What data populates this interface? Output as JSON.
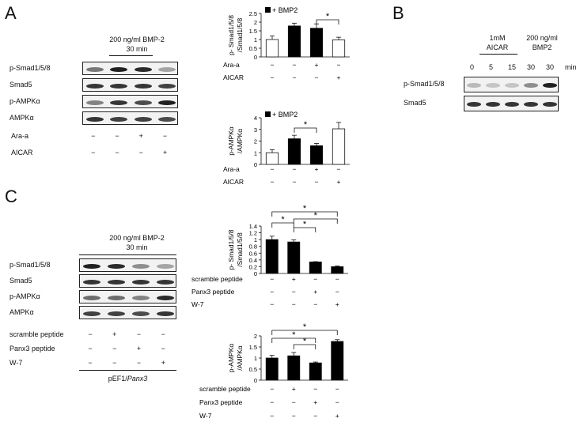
{
  "panelA": {
    "letter": "A",
    "blot": {
      "treatment_line1": "200 ng/ml BMP-2",
      "treatment_line2": "30 min",
      "rows": [
        "p-Smad1/5/8",
        "Smad5",
        "p-AMPKα",
        "AMPKα"
      ],
      "conditions": [
        {
          "label": "Ara-a",
          "marks": [
            "−",
            "−",
            "+",
            "−"
          ]
        },
        {
          "label": "AICAR",
          "marks": [
            "−",
            "−",
            "−",
            "+"
          ]
        }
      ]
    }
  },
  "panelB": {
    "letter": "B",
    "header_aicar_line1": "1mM",
    "header_aicar_line2": "AICAR",
    "header_bmp_line1": "200 ng/ml",
    "header_bmp_line2": "BMP2",
    "times": [
      "0",
      "5",
      "15",
      "30",
      "30"
    ],
    "time_unit": "min",
    "rows": [
      "p-Smad1/5/8",
      "Smad5"
    ]
  },
  "panelC": {
    "letter": "C",
    "blot": {
      "treatment_line1": "200 ng/ml BMP-2",
      "treatment_line2": "30 min",
      "rows": [
        "p-Smad1/5/8",
        "Smad5",
        "p-AMPKα",
        "AMPKα"
      ],
      "conditions": [
        {
          "label": "scramble peptide",
          "marks": [
            "−",
            "+",
            "−",
            "−"
          ]
        },
        {
          "label": "Panx3 peptide",
          "marks": [
            "−",
            "−",
            "+",
            "−"
          ]
        },
        {
          "label": "W-7",
          "marks": [
            "−",
            "−",
            "−",
            "+"
          ]
        }
      ],
      "footer_prefix": "pEF1/",
      "footer_gene": "Panx3"
    }
  },
  "chart_data": [
    {
      "id": "A-top",
      "type": "bar",
      "legend": "+ BMP2",
      "ylabel_line1": "p- Smad1/5/8",
      "ylabel_line2": "/Smad1/5/8",
      "ylim": [
        0,
        2.5
      ],
      "yticks": [
        "0",
        "0.5",
        "1",
        "1.5",
        "2",
        "2.5"
      ],
      "values": [
        1.0,
        1.78,
        1.65,
        0.98
      ],
      "errors": [
        0.2,
        0.16,
        0.25,
        0.15
      ],
      "fills": [
        "#ffffff",
        "#000000",
        "#000000",
        "#ffffff"
      ],
      "conditions": [
        {
          "label": "Ara-a",
          "marks": [
            "−",
            "−",
            "+",
            "−"
          ]
        },
        {
          "label": "AICAR",
          "marks": [
            "−",
            "−",
            "−",
            "+"
          ]
        }
      ],
      "sig": [
        {
          "from": 2,
          "to": 3,
          "label": "*"
        }
      ]
    },
    {
      "id": "A-bottom",
      "type": "bar",
      "legend": "+ BMP2",
      "ylabel_line1": "p-AMPKα",
      "ylabel_line2": "/AMPKα",
      "ylim": [
        0,
        4
      ],
      "yticks": [
        "0",
        "1",
        "2",
        "3",
        "4"
      ],
      "values": [
        1.0,
        2.2,
        1.6,
        3.05
      ],
      "errors": [
        0.25,
        0.3,
        0.2,
        0.55
      ],
      "fills": [
        "#ffffff",
        "#000000",
        "#000000",
        "#ffffff"
      ],
      "conditions": [
        {
          "label": "Ara-a",
          "marks": [
            "−",
            "−",
            "+",
            "−"
          ]
        },
        {
          "label": "AICAR",
          "marks": [
            "−",
            "−",
            "−",
            "+"
          ]
        }
      ],
      "sig": [
        {
          "from": 1,
          "to": 2,
          "label": "*"
        }
      ]
    },
    {
      "id": "C-top",
      "type": "bar",
      "ylabel_line1": "p- Smad1/5/8",
      "ylabel_line2": "/Smad1/5/8",
      "ylim": [
        0,
        1.4
      ],
      "yticks": [
        "0",
        "0.2",
        "0.4",
        "0.6",
        "0.8",
        "1",
        "1.2",
        "1.4"
      ],
      "values": [
        1.0,
        0.93,
        0.34,
        0.2
      ],
      "errors": [
        0.1,
        0.06,
        0.01,
        0.02
      ],
      "fills": [
        "#000000",
        "#000000",
        "#000000",
        "#000000"
      ],
      "conditions": [
        {
          "label": "scramble peptide",
          "marks": [
            "−",
            "+",
            "−",
            "−"
          ]
        },
        {
          "label": "Panx3 peptide",
          "marks": [
            "−",
            "−",
            "+",
            "−"
          ]
        },
        {
          "label": "W-7",
          "marks": [
            "−",
            "−",
            "−",
            "+"
          ]
        }
      ],
      "sig": [
        {
          "from": 0,
          "to": 1,
          "label": "*"
        },
        {
          "from": 1,
          "to": 2,
          "label": "*"
        },
        {
          "from": 1,
          "to": 3,
          "label": "*"
        },
        {
          "from": 0,
          "to": 3,
          "label": "*"
        }
      ]
    },
    {
      "id": "C-bottom",
      "type": "bar",
      "ylabel_line1": "p-AMPKα",
      "ylabel_line2": "/AMPKα",
      "ylim": [
        0,
        2
      ],
      "yticks": [
        "0",
        "0.5",
        "1",
        "1.5",
        "2"
      ],
      "values": [
        1.0,
        1.1,
        0.78,
        1.75
      ],
      "errors": [
        0.12,
        0.15,
        0.04,
        0.08
      ],
      "fills": [
        "#000000",
        "#000000",
        "#000000",
        "#000000"
      ],
      "conditions": [
        {
          "label": "scramble peptide",
          "marks": [
            "−",
            "+",
            "−",
            "−"
          ]
        },
        {
          "label": "Panx3 peptide",
          "marks": [
            "−",
            "−",
            "+",
            "−"
          ]
        },
        {
          "label": "W-7",
          "marks": [
            "−",
            "−",
            "−",
            "+"
          ]
        }
      ],
      "sig": [
        {
          "from": 1,
          "to": 2,
          "label": "*"
        },
        {
          "from": 0,
          "to": 2,
          "label": "*"
        },
        {
          "from": 0,
          "to": 3,
          "label": "*"
        }
      ]
    }
  ]
}
